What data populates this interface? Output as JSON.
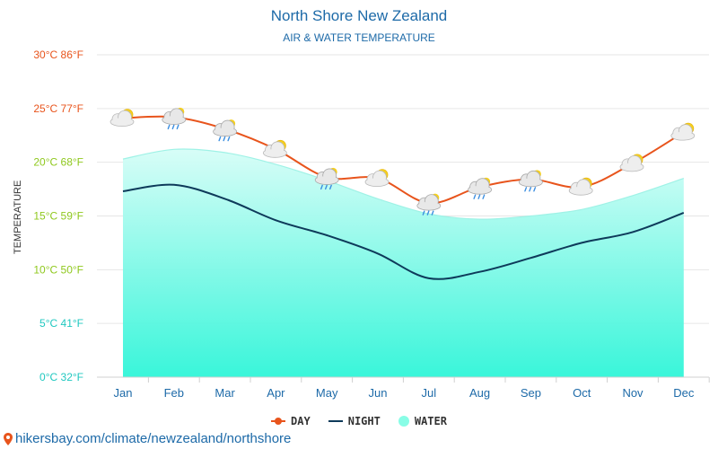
{
  "header": {
    "title": "North Shore New Zealand",
    "subtitle": "AIR & WATER TEMPERATURE"
  },
  "legend": {
    "day": "DAY",
    "night": "NIGHT",
    "water": "WATER"
  },
  "footer": {
    "url": "hikersbay.com/climate/newzealand/northshore"
  },
  "colors": {
    "day": "#e8541c",
    "night": "#0e3a5a",
    "water_top": "#a8fbef",
    "water_bottom": "#2ff5d8",
    "title": "#1d6aa8"
  },
  "chart_data": {
    "type": "line",
    "title": "North Shore New Zealand",
    "subtitle": "AIR & WATER TEMPERATURE",
    "ylabel": "TEMPERATURE",
    "xlabel": "",
    "categories": [
      "Jan",
      "Feb",
      "Mar",
      "Apr",
      "May",
      "Jun",
      "Jul",
      "Aug",
      "Sep",
      "Oct",
      "Nov",
      "Dec"
    ],
    "ylim": [
      0,
      30
    ],
    "yticks": [
      {
        "value": 0,
        "label": "0°C 32°F",
        "color": "#20c8c0"
      },
      {
        "value": 5,
        "label": "5°C 41°F",
        "color": "#20c8c0"
      },
      {
        "value": 10,
        "label": "10°C 50°F",
        "color": "#8fc81e"
      },
      {
        "value": 15,
        "label": "15°C 59°F",
        "color": "#8fc81e"
      },
      {
        "value": 20,
        "label": "20°C 68°F",
        "color": "#8fc81e"
      },
      {
        "value": 25,
        "label": "25°C 77°F",
        "color": "#e8541c"
      },
      {
        "value": 30,
        "label": "30°C 86°F",
        "color": "#e8541c"
      }
    ],
    "grid": true,
    "legend_position": "bottom",
    "series": [
      {
        "name": "DAY",
        "type": "line",
        "values": [
          24.1,
          24.2,
          23.1,
          21.2,
          18.6,
          18.5,
          16.2,
          17.7,
          18.4,
          17.7,
          19.9,
          22.8
        ]
      },
      {
        "name": "NIGHT",
        "type": "line",
        "values": [
          17.3,
          17.9,
          16.6,
          14.6,
          13.2,
          11.5,
          9.2,
          9.8,
          11.1,
          12.5,
          13.5,
          15.3
        ]
      },
      {
        "name": "WATER",
        "type": "area",
        "values": [
          20.3,
          21.2,
          20.9,
          19.8,
          18.3,
          16.6,
          15.2,
          14.7,
          15.0,
          15.6,
          16.9,
          18.5
        ]
      }
    ],
    "weather_icons": [
      "partly-cloudy",
      "cloudy-rain",
      "cloudy-rain",
      "partly-cloudy",
      "cloudy-rain",
      "overcast-sun",
      "cloudy-rain",
      "cloudy-rain",
      "cloudy-rain",
      "partly-cloudy",
      "partly-cloudy",
      "partly-cloudy"
    ]
  }
}
